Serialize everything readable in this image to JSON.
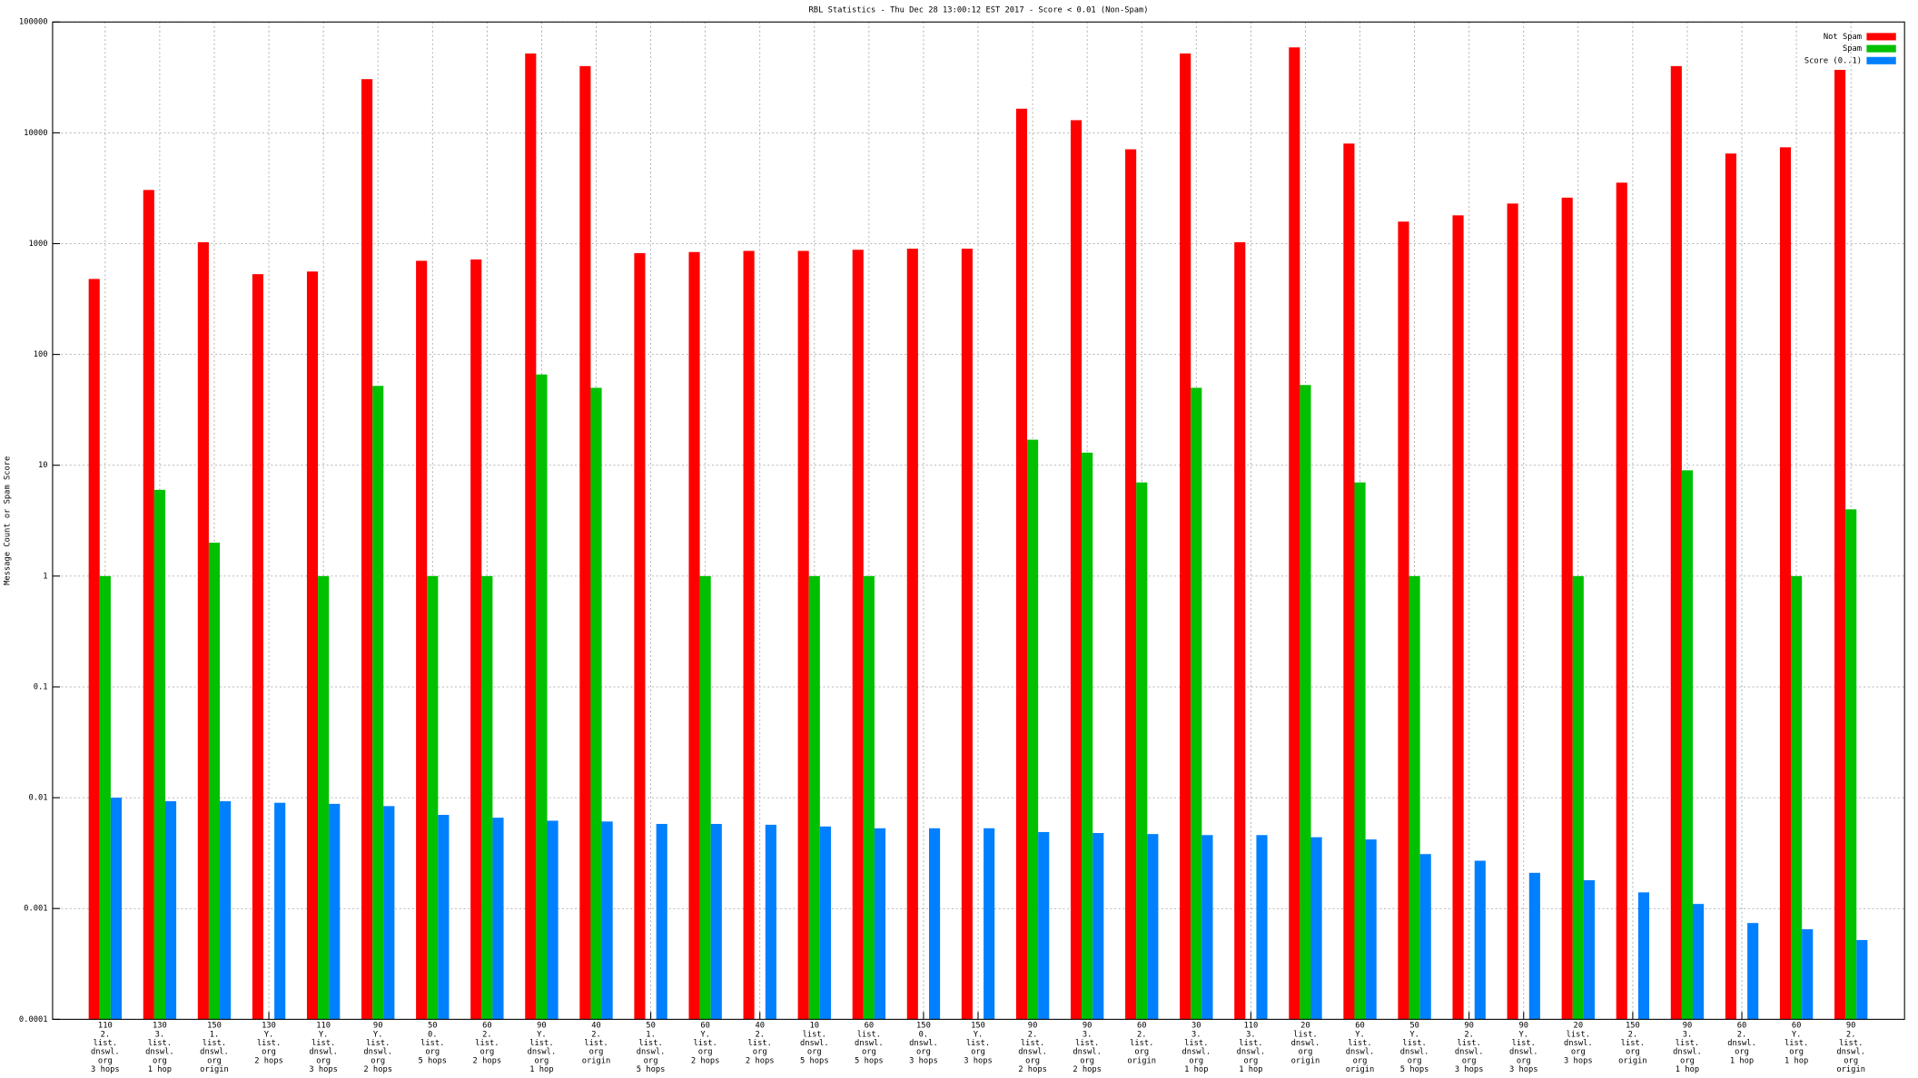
{
  "chart_data": {
    "type": "bar",
    "title": "RBL Statistics - Thu Dec 28 13:00:12 EST 2017 - Score < 0.01 (Non-Spam)",
    "y_label": "Message Count or Spam Score",
    "log_scale": true,
    "grid": true,
    "legend": "upper right",
    "ylim": [
      0.0001,
      100000
    ],
    "yticks": [
      100000,
      10000,
      1000,
      100,
      10,
      1,
      0.1,
      0.01,
      0.001,
      0.0001
    ],
    "categories": [
      [
        "110",
        "2.",
        "list.",
        "dnswl.",
        "org",
        "3 hops"
      ],
      [
        "130",
        "3.",
        "list.",
        "dnswl.",
        "org",
        "1 hop"
      ],
      [
        "150",
        "1.",
        "list.",
        "dnswl.",
        "org",
        "origin"
      ],
      [
        "130",
        "Y.",
        "list.",
        "org",
        "2 hops"
      ],
      [
        "110",
        "Y.",
        "list.",
        "dnswl.",
        "org",
        "3 hops"
      ],
      [
        "90",
        "Y.",
        "list.",
        "dnswl.",
        "org",
        "2 hops"
      ],
      [
        "50",
        "0.",
        "list.",
        "org",
        "5 hops"
      ],
      [
        "60",
        "2.",
        "list.",
        "org",
        "2 hops"
      ],
      [
        "90",
        "Y.",
        "list.",
        "dnswl.",
        "org",
        "1 hop"
      ],
      [
        "40",
        "2.",
        "list.",
        "org",
        "origin"
      ],
      [
        "50",
        "1.",
        "list.",
        "dnswl.",
        "org",
        "5 hops"
      ],
      [
        "60",
        "Y.",
        "list.",
        "org",
        "2 hops"
      ],
      [
        "40",
        "2.",
        "list.",
        "org",
        "2 hops"
      ],
      [
        "10",
        "list.",
        "dnswl.",
        "org",
        "5 hops"
      ],
      [
        "60",
        "list.",
        "dnswl.",
        "org",
        "5 hops"
      ],
      [
        "150",
        "0.",
        "dnswl.",
        "org",
        "3 hops"
      ],
      [
        "150",
        "Y.",
        "list.",
        "org",
        "3 hops"
      ],
      [
        "90",
        "2.",
        "list.",
        "dnswl.",
        "org",
        "2 hops"
      ],
      [
        "90",
        "3.",
        "list.",
        "dnswl.",
        "org",
        "2 hops"
      ],
      [
        "60",
        "2.",
        "list.",
        "org",
        "origin"
      ],
      [
        "30",
        "3.",
        "list.",
        "dnswl.",
        "org",
        "1 hop"
      ],
      [
        "110",
        "3.",
        "list.",
        "dnswl.",
        "org",
        "1 hop"
      ],
      [
        "20",
        "list.",
        "dnswl.",
        "org",
        "origin"
      ],
      [
        "60",
        "Y.",
        "list.",
        "dnswl.",
        "org",
        "origin"
      ],
      [
        "50",
        "Y.",
        "list.",
        "dnswl.",
        "org",
        "5 hops"
      ],
      [
        "90",
        "2.",
        "list.",
        "dnswl.",
        "org",
        "3 hops"
      ],
      [
        "90",
        "Y.",
        "list.",
        "dnswl.",
        "org",
        "3 hops"
      ],
      [
        "20",
        "list.",
        "dnswl.",
        "org",
        "3 hops"
      ],
      [
        "150",
        "2.",
        "list.",
        "org",
        "origin"
      ],
      [
        "90",
        "3.",
        "list.",
        "dnswl.",
        "org",
        "1 hop"
      ],
      [
        "60",
        "2.",
        "dnswl.",
        "org",
        "1 hop"
      ],
      [
        "60",
        "Y.",
        "list.",
        "org",
        "1 hop"
      ],
      [
        "90",
        "2.",
        "list.",
        "dnswl.",
        "org",
        "origin"
      ]
    ],
    "series": [
      {
        "name": "Not Spam",
        "color": "#ff0000",
        "values": [
          480,
          3050,
          1030,
          530,
          560,
          30500,
          700,
          720,
          52000,
          40000,
          820,
          840,
          860,
          860,
          880,
          900,
          900,
          16500,
          13000,
          7100,
          52000,
          1030,
          59000,
          8000,
          1580,
          1800,
          2300,
          2600,
          3550,
          40000,
          6500,
          7400,
          37000
        ]
      },
      {
        "name": "Spam",
        "color": "#00c000",
        "values": [
          1,
          6,
          2,
          null,
          1,
          52,
          1,
          1,
          66,
          50,
          null,
          1,
          null,
          1,
          1,
          null,
          null,
          17,
          13,
          7,
          50,
          null,
          53,
          7,
          1,
          null,
          null,
          1,
          null,
          9,
          null,
          1,
          4
        ]
      },
      {
        "name": "Score (0..1)",
        "color": "#0080ff",
        "values": [
          0.01,
          0.0093,
          0.0093,
          0.009,
          0.0088,
          0.0084,
          0.007,
          0.0066,
          0.0062,
          0.0061,
          0.0058,
          0.0058,
          0.0057,
          0.0055,
          0.0053,
          0.0053,
          0.0053,
          0.0049,
          0.0048,
          0.0047,
          0.0046,
          0.0046,
          0.0044,
          0.0042,
          0.0031,
          0.0027,
          0.0021,
          0.0018,
          0.0014,
          0.0011,
          0.00074,
          0.00065,
          0.00052
        ]
      }
    ]
  }
}
